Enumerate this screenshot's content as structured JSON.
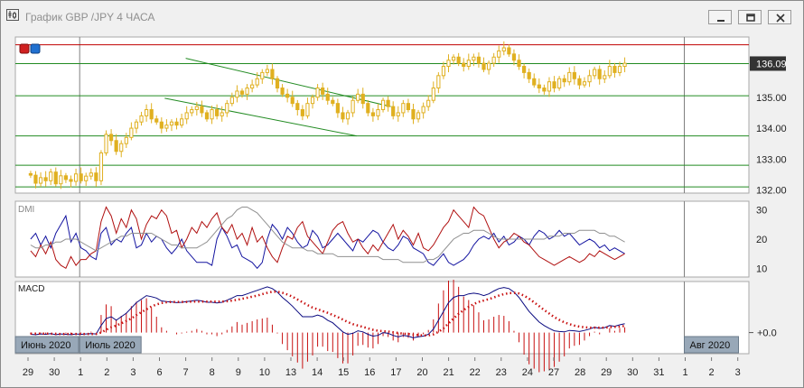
{
  "window": {
    "title": "График GBP /JPY  4 ЧАСА",
    "icon": "chart-icon",
    "buttons": [
      "minimize-icon",
      "restore-icon",
      "close-icon"
    ]
  },
  "colors": {
    "candle": "#e0b020",
    "hline": "#228b22",
    "redline": "#c00000",
    "dmi_plus": "#1414a0",
    "dmi_minus": "#b01010",
    "adx": "#909090",
    "macd": "#0a0a80",
    "signal": "#c81010",
    "hist": "#c81010",
    "price_tag": "#333333"
  },
  "chart_data": [
    {
      "type": "candlestick",
      "name": "price",
      "current_price_label": "136.09",
      "y_ticks": [
        "132.00",
        "133.00",
        "134.00",
        "135.00"
      ],
      "ylim": [
        131.9,
        136.95
      ],
      "horizontal_levels": [
        132.1,
        132.8,
        133.75,
        135.05,
        136.09
      ],
      "resistance_red": 136.7,
      "trendlines": [
        {
          "from": [
            6,
            136.26
          ],
          "to": [
            13.8,
            134.7
          ]
        },
        {
          "from": [
            5.2,
            134.97
          ],
          "to": [
            12.5,
            133.75
          ]
        }
      ],
      "close": [
        132.48,
        132.22,
        132.4,
        132.3,
        132.58,
        132.2,
        132.46,
        132.34,
        132.28,
        132.52,
        132.3,
        132.45,
        132.55,
        132.3,
        133.2,
        133.8,
        133.6,
        133.25,
        133.5,
        133.7,
        134.0,
        134.2,
        134.4,
        134.6,
        134.3,
        134.2,
        134.0,
        134.1,
        134.2,
        134.1,
        134.3,
        134.5,
        134.6,
        134.7,
        134.5,
        134.3,
        134.6,
        134.4,
        134.5,
        134.8,
        135.0,
        135.2,
        135.1,
        135.3,
        135.4,
        135.6,
        135.8,
        135.9,
        135.6,
        135.3,
        135.1,
        135.0,
        134.8,
        134.6,
        134.4,
        134.8,
        135.0,
        135.3,
        135.1,
        134.9,
        134.8,
        134.5,
        134.3,
        134.5,
        134.9,
        135.1,
        134.8,
        134.5,
        134.4,
        134.6,
        134.9,
        134.7,
        134.4,
        134.5,
        134.8,
        134.6,
        134.3,
        134.5,
        134.7,
        134.9,
        135.3,
        135.7,
        136.0,
        136.2,
        136.3,
        136.1,
        136.0,
        136.2,
        136.3,
        136.1,
        135.9,
        136.1,
        136.3,
        136.5,
        136.6,
        136.4,
        136.2,
        136.0,
        135.8,
        135.6,
        135.4,
        135.3,
        135.2,
        135.5,
        135.3,
        135.6,
        135.5,
        135.8,
        135.6,
        135.4,
        135.5,
        135.7,
        135.9,
        135.6,
        135.7,
        136.0,
        135.8,
        136.0,
        136.1
      ],
      "overlay": "single-level-then-arrays"
    },
    {
      "type": "line",
      "name": "DMI",
      "label": "DMI",
      "y_ticks": [
        "30",
        "20",
        "10"
      ],
      "ylim": [
        7,
        33
      ],
      "series": [
        {
          "key": "plus",
          "values": [
            20,
            22,
            18,
            21,
            17,
            22,
            25,
            28,
            19,
            22,
            17,
            16,
            14,
            13,
            22,
            24,
            18,
            20,
            19,
            22,
            24,
            17,
            18,
            22,
            19,
            21,
            20,
            17,
            15,
            17,
            20,
            16,
            14,
            12,
            12,
            12,
            11,
            20,
            24,
            21,
            17,
            18,
            14,
            13,
            12,
            10,
            12,
            20,
            25,
            23,
            20,
            24,
            22,
            19,
            17,
            18,
            23,
            21,
            17,
            18,
            20,
            22,
            20,
            18,
            16,
            20,
            19,
            21,
            23,
            22,
            19,
            17,
            16,
            18,
            21,
            20,
            17,
            16,
            15,
            12,
            11,
            13,
            15,
            12,
            11,
            12,
            13,
            15,
            18,
            20,
            21,
            20,
            22,
            19,
            21,
            18,
            19,
            21,
            20,
            18,
            21,
            23,
            22,
            20,
            21,
            23,
            21,
            22,
            20,
            18,
            19,
            20,
            19,
            17,
            18,
            16,
            17,
            16,
            15
          ]
        },
        {
          "key": "minus",
          "values": [
            16,
            14,
            18,
            15,
            19,
            13,
            11,
            10,
            14,
            11,
            13,
            13,
            15,
            16,
            26,
            31,
            28,
            22,
            27,
            24,
            30,
            27,
            20,
            25,
            28,
            27,
            30,
            28,
            22,
            23,
            17,
            20,
            24,
            22,
            26,
            24,
            27,
            29,
            24,
            22,
            25,
            20,
            22,
            18,
            24,
            19,
            21,
            17,
            14,
            12,
            17,
            21,
            20,
            24,
            26,
            21,
            19,
            17,
            15,
            19,
            23,
            25,
            26,
            22,
            19,
            20,
            17,
            15,
            18,
            16,
            19,
            22,
            25,
            20,
            23,
            21,
            18,
            22,
            17,
            16,
            18,
            21,
            24,
            26,
            30,
            28,
            26,
            24,
            31,
            29,
            28,
            24,
            20,
            17,
            19,
            20,
            22,
            21,
            19,
            18,
            16,
            14,
            13,
            12,
            11,
            12,
            13,
            14,
            13,
            12,
            13,
            15,
            14,
            16,
            15,
            14,
            13,
            14,
            15
          ]
        },
        {
          "key": "adx",
          "values": [
            18,
            17,
            17,
            18,
            18,
            19,
            19,
            20,
            20,
            20,
            19,
            18,
            17,
            16,
            17,
            18,
            19,
            20,
            21,
            21,
            22,
            22,
            22,
            22,
            22,
            21,
            20,
            19,
            18,
            18,
            17,
            17,
            17,
            17,
            18,
            19,
            21,
            23,
            25,
            27,
            28,
            30,
            31,
            31,
            30,
            29,
            27,
            25,
            23,
            21,
            19,
            18,
            17,
            17,
            17,
            16,
            16,
            15,
            15,
            15,
            15,
            14,
            14,
            14,
            14,
            14,
            14,
            14,
            14,
            14,
            13,
            13,
            13,
            13,
            12,
            12,
            12,
            12,
            12,
            13,
            13,
            14,
            16,
            18,
            20,
            21,
            22,
            22,
            23,
            23,
            23,
            22,
            21,
            20,
            20,
            20,
            20,
            20,
            20,
            20,
            20,
            20,
            20,
            21,
            21,
            21,
            22,
            22,
            22,
            23,
            23,
            23,
            23,
            22,
            22,
            21,
            21,
            20,
            19
          ]
        }
      ]
    },
    {
      "type": "line",
      "name": "MACD",
      "label": "MACD",
      "y_ticks": [
        "+0.0"
      ],
      "ylim": [
        -0.6,
        1.45
      ],
      "histogram_zero": 0,
      "series": [
        {
          "key": "macd",
          "values": [
            -0.05,
            -0.06,
            -0.04,
            -0.05,
            -0.03,
            -0.06,
            -0.04,
            -0.05,
            -0.06,
            -0.04,
            -0.05,
            -0.04,
            -0.03,
            -0.04,
            0.2,
            0.4,
            0.45,
            0.35,
            0.45,
            0.55,
            0.7,
            0.85,
            0.95,
            1.05,
            1.02,
            0.98,
            0.9,
            0.88,
            0.87,
            0.85,
            0.86,
            0.88,
            0.9,
            0.92,
            0.9,
            0.86,
            0.86,
            0.84,
            0.86,
            0.92,
            0.98,
            1.05,
            1.05,
            1.1,
            1.15,
            1.2,
            1.25,
            1.3,
            1.25,
            1.15,
            1.0,
            0.88,
            0.75,
            0.6,
            0.45,
            0.45,
            0.45,
            0.5,
            0.45,
            0.35,
            0.28,
            0.15,
            0.02,
            -0.05,
            -0.02,
            0.05,
            0.02,
            -0.05,
            -0.1,
            -0.08,
            0.0,
            -0.02,
            -0.08,
            -0.12,
            -0.08,
            -0.1,
            -0.15,
            -0.12,
            -0.1,
            -0.05,
            0.1,
            0.35,
            0.6,
            0.85,
            1.0,
            1.05,
            1.05,
            1.1,
            1.12,
            1.1,
            1.05,
            1.1,
            1.18,
            1.25,
            1.28,
            1.25,
            1.15,
            1.0,
            0.8,
            0.6,
            0.45,
            0.3,
            0.2,
            0.12,
            0.05,
            0.03,
            0.02,
            0.06,
            0.05,
            0.03,
            0.06,
            0.1,
            0.15,
            0.12,
            0.14,
            0.2,
            0.18,
            0.22,
            0.25
          ]
        },
        {
          "key": "signal",
          "values": [
            -0.03,
            -0.03,
            -0.03,
            -0.03,
            -0.03,
            -0.04,
            -0.04,
            -0.04,
            -0.04,
            -0.04,
            -0.04,
            -0.04,
            -0.04,
            -0.04,
            0.0,
            0.08,
            0.15,
            0.2,
            0.26,
            0.33,
            0.4,
            0.5,
            0.58,
            0.66,
            0.74,
            0.8,
            0.84,
            0.86,
            0.87,
            0.87,
            0.87,
            0.87,
            0.88,
            0.88,
            0.88,
            0.88,
            0.88,
            0.88,
            0.88,
            0.89,
            0.91,
            0.93,
            0.96,
            0.99,
            1.02,
            1.05,
            1.09,
            1.13,
            1.16,
            1.16,
            1.13,
            1.08,
            1.02,
            0.94,
            0.86,
            0.78,
            0.71,
            0.66,
            0.61,
            0.56,
            0.5,
            0.44,
            0.37,
            0.3,
            0.24,
            0.2,
            0.16,
            0.12,
            0.08,
            0.05,
            0.04,
            0.03,
            0.01,
            -0.01,
            -0.03,
            -0.04,
            -0.06,
            -0.07,
            -0.08,
            -0.08,
            -0.05,
            0.02,
            0.12,
            0.26,
            0.4,
            0.53,
            0.64,
            0.73,
            0.81,
            0.87,
            0.91,
            0.95,
            1.0,
            1.05,
            1.09,
            1.12,
            1.13,
            1.11,
            1.05,
            0.96,
            0.86,
            0.75,
            0.64,
            0.54,
            0.44,
            0.36,
            0.29,
            0.24,
            0.2,
            0.17,
            0.15,
            0.14,
            0.14,
            0.14,
            0.14,
            0.15,
            0.16,
            0.17,
            0.19
          ]
        }
      ]
    }
  ],
  "x_axis": {
    "labels": [
      "29",
      "30",
      "1",
      "2",
      "3",
      "6",
      "7",
      "8",
      "9",
      "10",
      "13",
      "14",
      "15",
      "16",
      "17",
      "20",
      "21",
      "22",
      "23",
      "24",
      "27",
      "28",
      "29",
      "30",
      "31",
      "1",
      "2",
      "3"
    ],
    "period_separators": [
      2,
      25
    ]
  },
  "period_labels": [
    {
      "text": "Июнь 2020",
      "at": 0
    },
    {
      "text": "Июль 2020",
      "at": 2
    },
    {
      "text": "Авг 2020",
      "at": 25
    }
  ]
}
